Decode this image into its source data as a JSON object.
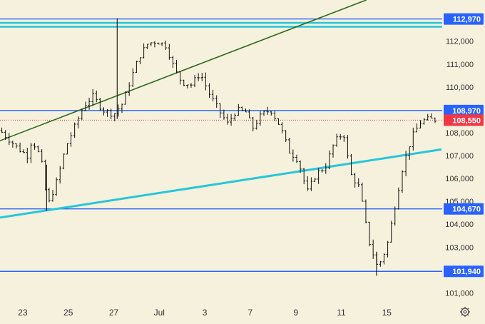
{
  "chart_data": {
    "type": "ohlc",
    "y_axis": {
      "min": 100700,
      "max": 113800,
      "ticks": [
        101000,
        102000,
        103000,
        104000,
        105000,
        106000,
        107000,
        108000,
        109000,
        110000,
        111000,
        112000
      ],
      "tick_labels": [
        "101,000",
        "102,000",
        "103,000",
        "104,000",
        "105,000",
        "106,000",
        "107,000",
        "108,000",
        "109,000",
        "110,000",
        "111,000",
        "112,000"
      ]
    },
    "x_axis": {
      "day_count": 27,
      "ticks": [
        {
          "day": 1,
          "label": "23"
        },
        {
          "day": 3,
          "label": "25"
        },
        {
          "day": 5,
          "label": "27"
        },
        {
          "day": 7,
          "label": "Jul"
        },
        {
          "day": 9,
          "label": "3"
        },
        {
          "day": 11,
          "label": "7"
        },
        {
          "day": 13,
          "label": "9"
        },
        {
          "day": 15,
          "label": "11"
        },
        {
          "day": 17,
          "label": "15"
        }
      ]
    },
    "horizontal_levels": [
      {
        "price": 112970,
        "label": "112,970",
        "color": "#2962ff"
      },
      {
        "price": 108970,
        "label": "108,970",
        "color": "#2962ff"
      },
      {
        "price": 104670,
        "label": "104,670",
        "color": "#2962ff"
      },
      {
        "price": 101940,
        "label": "101,940",
        "color": "#2962ff"
      }
    ],
    "cyan_band": {
      "upper": 112800,
      "lower": 112630,
      "color": "#26c6da"
    },
    "current_price": {
      "price": 108550,
      "label": "108,550",
      "color": "#f23645"
    },
    "trendlines": [
      {
        "name": "",
        "color": "#2e6b1f",
        "points": [
          {
            "day": 0.0,
            "price": 107650
          },
          {
            "day": 16.1,
            "price": 113800
          }
        ]
      },
      {
        "name": "",
        "color": "#26c6da",
        "points": [
          {
            "day": 0.0,
            "price": 104290
          },
          {
            "day": 19.4,
            "price": 107270
          }
        ]
      }
    ],
    "price_path": [
      [
        0.0,
        108100
      ],
      [
        0.4,
        107700
      ],
      [
        0.8,
        107300
      ],
      [
        1.2,
        107000
      ],
      [
        1.4,
        107700
      ],
      [
        1.8,
        106900
      ],
      [
        2.1,
        104800
      ],
      [
        2.5,
        105900
      ],
      [
        2.9,
        107400
      ],
      [
        3.3,
        108300
      ],
      [
        3.7,
        109200
      ],
      [
        4.1,
        109600
      ],
      [
        4.5,
        109000
      ],
      [
        5.0,
        108800
      ],
      [
        5.4,
        109300
      ],
      [
        5.7,
        110200
      ],
      [
        6.1,
        111300
      ],
      [
        6.5,
        111900
      ],
      [
        6.9,
        112000
      ],
      [
        7.3,
        111800
      ],
      [
        7.7,
        110700
      ],
      [
        8.0,
        110200
      ],
      [
        8.4,
        110100
      ],
      [
        8.8,
        110600
      ],
      [
        9.2,
        109700
      ],
      [
        9.6,
        109000
      ],
      [
        10.0,
        108400
      ],
      [
        10.4,
        109000
      ],
      [
        10.8,
        108900
      ],
      [
        11.1,
        108200
      ],
      [
        11.5,
        108800
      ],
      [
        11.9,
        109000
      ],
      [
        12.3,
        108300
      ],
      [
        12.7,
        107200
      ],
      [
        13.1,
        106800
      ],
      [
        13.5,
        105400
      ],
      [
        13.9,
        106200
      ],
      [
        14.3,
        106500
      ],
      [
        14.7,
        107600
      ],
      [
        15.1,
        108000
      ],
      [
        15.4,
        106200
      ],
      [
        15.8,
        105600
      ],
      [
        16.2,
        103300
      ],
      [
        16.6,
        102100
      ],
      [
        17.0,
        103000
      ],
      [
        17.3,
        104500
      ],
      [
        17.7,
        106500
      ],
      [
        18.1,
        107800
      ],
      [
        18.5,
        108500
      ],
      [
        18.9,
        108600
      ],
      [
        19.2,
        108550
      ]
    ],
    "spikes": [
      {
        "day": 5.15,
        "low": 108600,
        "high": 113000
      },
      {
        "day": 2.05,
        "low": 104580,
        "high": 106600
      },
      {
        "day": 16.55,
        "low": 101750,
        "high": 102800
      }
    ],
    "grid": false,
    "legend": "none"
  },
  "axis_settings_icon": "gear-icon"
}
